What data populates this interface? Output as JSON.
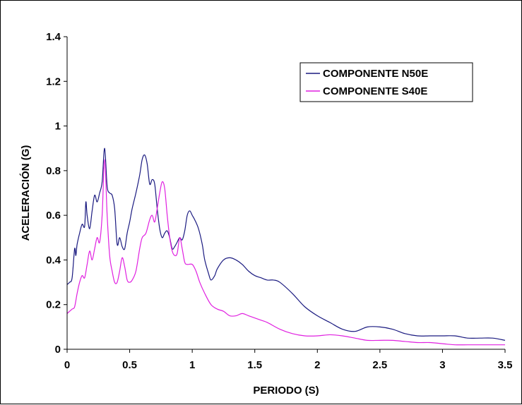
{
  "chart_data": {
    "type": "line",
    "title": "",
    "xlabel": "PERIODO (S)",
    "ylabel": "ACELERACIÓN (G)",
    "xlim": [
      0,
      3.5
    ],
    "ylim": [
      0,
      1.4
    ],
    "x_ticks": [
      "0",
      "0.5",
      "1",
      "1.5",
      "2",
      "2.5",
      "3",
      "3.5"
    ],
    "y_ticks": [
      "0",
      "0.2",
      "0.4",
      "0.6",
      "0.8",
      "1",
      "1.2",
      "1.4"
    ],
    "grid": false,
    "legend_position": "top-right",
    "series": [
      {
        "name": "COMPONENTE N50E",
        "color": "#1a1a80",
        "x": [
          0,
          0.02,
          0.04,
          0.06,
          0.07,
          0.08,
          0.1,
          0.12,
          0.14,
          0.15,
          0.16,
          0.18,
          0.2,
          0.22,
          0.24,
          0.26,
          0.28,
          0.3,
          0.32,
          0.34,
          0.36,
          0.38,
          0.4,
          0.42,
          0.44,
          0.46,
          0.48,
          0.5,
          0.52,
          0.55,
          0.58,
          0.6,
          0.62,
          0.64,
          0.66,
          0.68,
          0.7,
          0.72,
          0.74,
          0.76,
          0.78,
          0.8,
          0.82,
          0.84,
          0.86,
          0.88,
          0.9,
          0.92,
          0.94,
          0.96,
          0.98,
          1.0,
          1.02,
          1.05,
          1.08,
          1.1,
          1.13,
          1.15,
          1.18,
          1.2,
          1.25,
          1.3,
          1.35,
          1.4,
          1.45,
          1.5,
          1.55,
          1.6,
          1.65,
          1.7,
          1.8,
          1.9,
          2.0,
          2.1,
          2.2,
          2.3,
          2.4,
          2.5,
          2.6,
          2.7,
          2.8,
          2.9,
          3.0,
          3.1,
          3.2,
          3.3,
          3.4,
          3.5
        ],
        "values": [
          0.29,
          0.3,
          0.32,
          0.45,
          0.42,
          0.47,
          0.52,
          0.56,
          0.55,
          0.66,
          0.6,
          0.54,
          0.62,
          0.69,
          0.66,
          0.7,
          0.75,
          0.9,
          0.73,
          0.7,
          0.69,
          0.63,
          0.47,
          0.5,
          0.46,
          0.45,
          0.52,
          0.57,
          0.63,
          0.7,
          0.78,
          0.85,
          0.87,
          0.83,
          0.74,
          0.76,
          0.74,
          0.63,
          0.54,
          0.5,
          0.52,
          0.53,
          0.5,
          0.45,
          0.46,
          0.48,
          0.5,
          0.49,
          0.53,
          0.6,
          0.62,
          0.6,
          0.58,
          0.54,
          0.47,
          0.4,
          0.34,
          0.31,
          0.33,
          0.36,
          0.4,
          0.41,
          0.4,
          0.38,
          0.35,
          0.33,
          0.32,
          0.31,
          0.31,
          0.3,
          0.25,
          0.19,
          0.15,
          0.12,
          0.09,
          0.08,
          0.1,
          0.1,
          0.09,
          0.07,
          0.06,
          0.06,
          0.06,
          0.06,
          0.05,
          0.05,
          0.05,
          0.04
        ]
      },
      {
        "name": "COMPONENTE S40E",
        "color": "#e020e0",
        "x": [
          0,
          0.02,
          0.04,
          0.06,
          0.08,
          0.1,
          0.12,
          0.14,
          0.16,
          0.18,
          0.2,
          0.22,
          0.24,
          0.26,
          0.28,
          0.3,
          0.32,
          0.34,
          0.36,
          0.38,
          0.4,
          0.42,
          0.44,
          0.46,
          0.48,
          0.5,
          0.52,
          0.55,
          0.58,
          0.6,
          0.63,
          0.66,
          0.68,
          0.7,
          0.72,
          0.74,
          0.76,
          0.78,
          0.8,
          0.82,
          0.84,
          0.86,
          0.88,
          0.9,
          0.92,
          0.94,
          0.96,
          1.0,
          1.03,
          1.06,
          1.1,
          1.15,
          1.2,
          1.25,
          1.3,
          1.35,
          1.4,
          1.45,
          1.5,
          1.55,
          1.6,
          1.7,
          1.8,
          1.9,
          2.0,
          2.1,
          2.2,
          2.3,
          2.4,
          2.5,
          2.6,
          2.7,
          2.8,
          2.9,
          3.0,
          3.1,
          3.2,
          3.3,
          3.4,
          3.5
        ],
        "values": [
          0.16,
          0.17,
          0.18,
          0.19,
          0.25,
          0.3,
          0.33,
          0.32,
          0.38,
          0.44,
          0.4,
          0.45,
          0.5,
          0.48,
          0.6,
          0.85,
          0.6,
          0.42,
          0.35,
          0.3,
          0.3,
          0.35,
          0.41,
          0.37,
          0.31,
          0.3,
          0.31,
          0.35,
          0.45,
          0.5,
          0.52,
          0.58,
          0.6,
          0.57,
          0.63,
          0.7,
          0.75,
          0.72,
          0.6,
          0.5,
          0.44,
          0.42,
          0.43,
          0.5,
          0.45,
          0.39,
          0.38,
          0.38,
          0.35,
          0.3,
          0.25,
          0.2,
          0.18,
          0.17,
          0.15,
          0.15,
          0.16,
          0.15,
          0.14,
          0.13,
          0.12,
          0.09,
          0.07,
          0.06,
          0.06,
          0.065,
          0.06,
          0.05,
          0.04,
          0.04,
          0.04,
          0.035,
          0.03,
          0.03,
          0.025,
          0.02,
          0.02,
          0.02,
          0.02,
          0.02
        ]
      }
    ]
  }
}
